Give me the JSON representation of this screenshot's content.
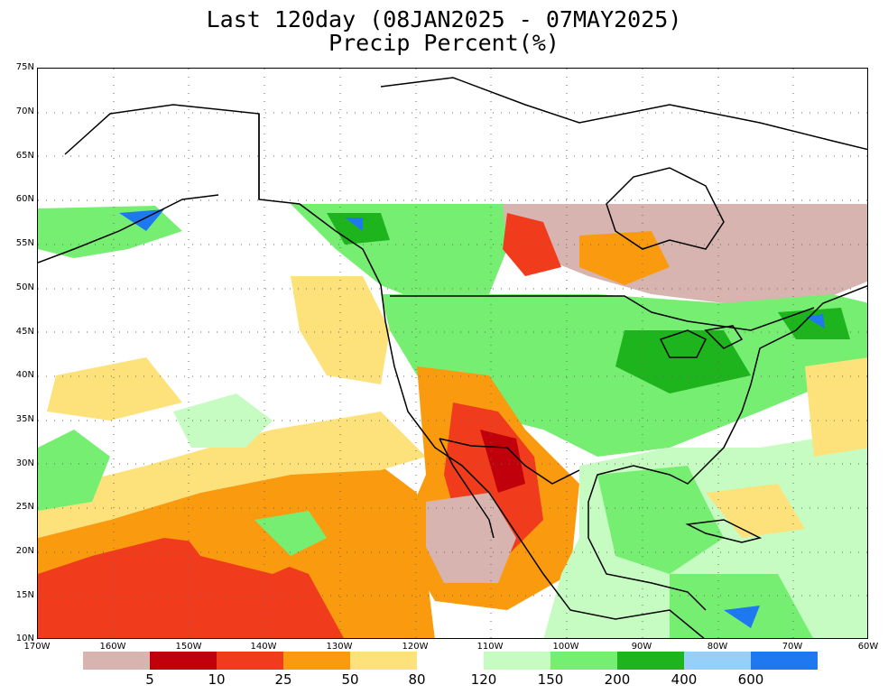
{
  "title": "Last 120day (08JAN2025 - 07MAY2025)",
  "subtitle": "Precip Percent(%)",
  "map": {
    "lat_labels": [
      "75N",
      "70N",
      "65N",
      "60N",
      "55N",
      "50N",
      "45N",
      "40N",
      "35N",
      "30N",
      "25N",
      "20N",
      "15N",
      "10N"
    ],
    "lon_labels": [
      "170W",
      "160W",
      "150W",
      "140W",
      "130W",
      "120W",
      "110W",
      "100W",
      "90W",
      "80W",
      "70W",
      "60W"
    ],
    "lat_range": [
      10,
      75
    ],
    "lon_range": [
      -170,
      -60
    ],
    "grid": "dotted",
    "region": "North America and adjacent oceans"
  },
  "legend": {
    "placement": "bottom",
    "colors": [
      "#d8b4b0",
      "#c0000a",
      "#f03c1c",
      "#fa9a0e",
      "#fde27b",
      "#ffffff",
      "#c6fcc2",
      "#76ee72",
      "#1eb41e",
      "#96d0f8",
      "#1e78f0"
    ],
    "labels": [
      "5",
      "10",
      "25",
      "50",
      "80",
      "120",
      "150",
      "200",
      "400",
      "600"
    ]
  }
}
